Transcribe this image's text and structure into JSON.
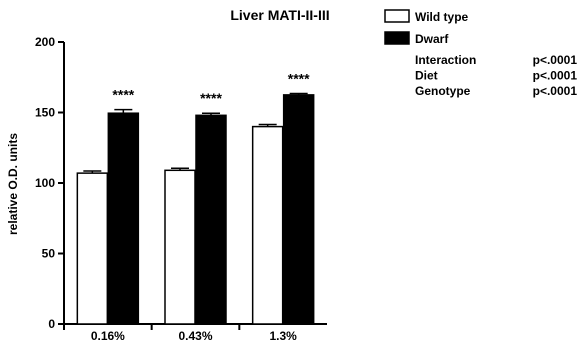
{
  "chart_data": {
    "type": "bar",
    "title": "Liver MATI-II-III",
    "xlabel": "",
    "ylabel": "relative O.D. units",
    "ylim": [
      0,
      200
    ],
    "yticks": [
      0,
      50,
      100,
      150,
      200
    ],
    "categories": [
      "0.16%",
      "0.43%",
      "1.3%"
    ],
    "series": [
      {
        "name": "Wild type",
        "fill": "#ffffff",
        "values": [
          107,
          109,
          140
        ],
        "errors": [
          1.5,
          1.5,
          1.5
        ]
      },
      {
        "name": "Dwarf",
        "fill": "#000000",
        "values": [
          149.5,
          148,
          162.5
        ],
        "errors": [
          2.5,
          1.5,
          1
        ]
      }
    ],
    "significance": [
      "****",
      "****",
      "****"
    ],
    "stats": [
      {
        "label": "Interaction",
        "value": "p<.0001"
      },
      {
        "label": "Diet",
        "value": "p<.0001"
      },
      {
        "label": "Genotype",
        "value": "p<.0001"
      }
    ],
    "legend_position": "top-right",
    "grid": false
  }
}
